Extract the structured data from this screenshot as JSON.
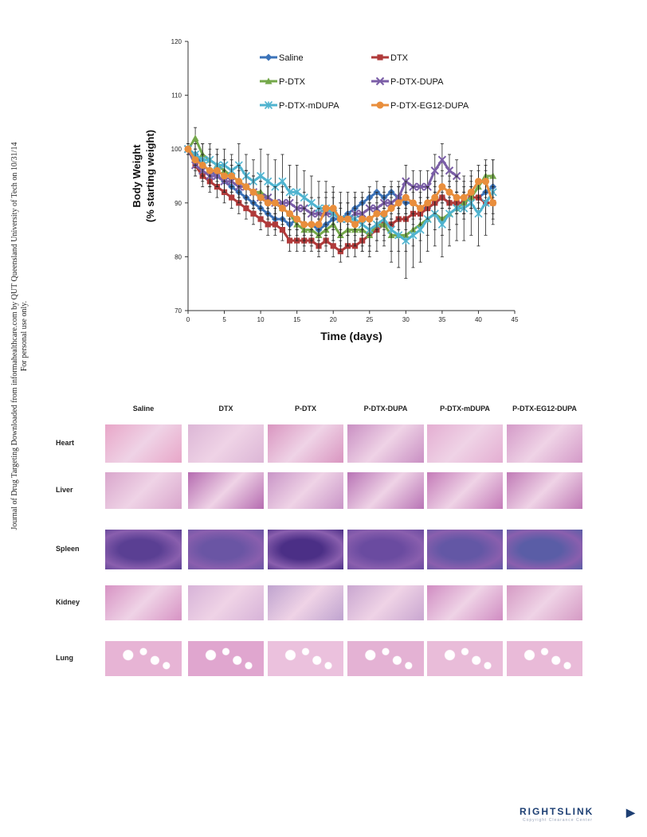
{
  "side_note": {
    "line1": "Journal of Drug Targeting Downloaded from informahealthcare.com by QUT Queensland University of Tech on 10/31/14",
    "line2": "For personal use only."
  },
  "chart_data": {
    "type": "line",
    "title": "",
    "xlabel": "Time (days)",
    "ylabel_line1": "Body Weight",
    "ylabel_line2": "(% starting weight)",
    "xlim": [
      0,
      45
    ],
    "ylim": [
      70,
      120
    ],
    "xticks": [
      0,
      5,
      10,
      15,
      20,
      25,
      30,
      35,
      40,
      45
    ],
    "yticks": [
      70,
      80,
      90,
      100,
      110,
      120
    ],
    "grid": false,
    "legend_position": "top",
    "series": [
      {
        "name": "Saline",
        "color": "#3b73b9",
        "marker": "diamond",
        "x": [
          0,
          1,
          2,
          3,
          4,
          5,
          6,
          7,
          8,
          9,
          10,
          11,
          12,
          13,
          14,
          15,
          16,
          17,
          18,
          19,
          20,
          21,
          22,
          23,
          24,
          25,
          26,
          27,
          28,
          29,
          30,
          31,
          32,
          33,
          34,
          35,
          36,
          37,
          38,
          39,
          40,
          41,
          42
        ],
        "y": [
          100,
          99,
          97,
          96,
          95,
          94,
          93,
          92,
          91,
          90,
          89,
          88,
          87,
          87,
          86,
          87,
          86,
          86,
          85,
          86,
          87,
          87,
          88,
          89,
          90,
          91,
          92,
          91,
          92,
          91,
          90,
          90,
          89,
          89,
          90,
          91,
          90,
          90,
          90,
          91,
          91,
          92,
          93
        ],
        "err": [
          1,
          2,
          2,
          2,
          2,
          2,
          2,
          2,
          2,
          2,
          2,
          2,
          2,
          2,
          2,
          2,
          2,
          2,
          2,
          2,
          2,
          2,
          2,
          2,
          2,
          2,
          2,
          2,
          2,
          2,
          2,
          2,
          2,
          2,
          2,
          2,
          2,
          2,
          2,
          2,
          2,
          2,
          2
        ]
      },
      {
        "name": "DTX",
        "color": "#b03a3a",
        "marker": "square",
        "x": [
          0,
          1,
          2,
          3,
          4,
          5,
          6,
          7,
          8,
          9,
          10,
          11,
          12,
          13,
          14,
          15,
          16,
          17,
          18,
          19,
          20,
          21,
          22,
          23,
          24,
          25,
          26,
          27,
          28,
          29,
          30,
          31,
          32,
          33,
          34,
          35,
          36,
          37,
          38,
          39,
          40,
          41,
          42
        ],
        "y": [
          100,
          97,
          95,
          94,
          93,
          92,
          91,
          90,
          89,
          88,
          87,
          86,
          86,
          85,
          83,
          83,
          83,
          83,
          82,
          83,
          82,
          81,
          82,
          82,
          83,
          84,
          85,
          86,
          86,
          87,
          87,
          88,
          88,
          89,
          90,
          91,
          90,
          90,
          90,
          91,
          91,
          90,
          90
        ],
        "err": [
          1,
          2,
          2,
          2,
          2,
          2,
          2,
          2,
          2,
          2,
          2,
          2,
          2,
          2,
          2,
          2,
          2,
          2,
          2,
          2,
          2,
          2,
          2,
          2,
          2,
          2,
          2,
          2,
          2,
          2,
          2,
          2,
          2,
          2,
          2,
          2,
          2,
          2,
          2,
          2,
          2,
          2,
          2
        ]
      },
      {
        "name": "P-DTX",
        "color": "#74a84a",
        "marker": "triangle",
        "x": [
          0,
          1,
          2,
          3,
          4,
          5,
          6,
          7,
          8,
          9,
          10,
          11,
          12,
          13,
          14,
          15,
          16,
          17,
          18,
          19,
          20,
          21,
          22,
          23,
          24,
          25,
          26,
          27,
          28,
          29,
          30,
          31,
          32,
          33,
          34,
          35,
          36,
          37,
          38,
          39,
          40,
          41,
          42
        ],
        "y": [
          100,
          102,
          99,
          98,
          97,
          96,
          95,
          94,
          93,
          92,
          92,
          91,
          90,
          89,
          88,
          86,
          85,
          85,
          84,
          85,
          86,
          84,
          85,
          85,
          85,
          84,
          86,
          86,
          84,
          84,
          84,
          85,
          86,
          87,
          88,
          87,
          88,
          89,
          90,
          91,
          93,
          95,
          95
        ],
        "err": [
          1,
          2,
          2,
          2,
          2,
          2,
          2,
          3,
          3,
          3,
          3,
          3,
          3,
          3,
          3,
          3,
          3,
          3,
          3,
          3,
          3,
          3,
          3,
          3,
          3,
          3,
          3,
          3,
          3,
          3,
          3,
          3,
          3,
          3,
          3,
          3,
          3,
          3,
          3,
          3,
          3,
          3,
          3
        ]
      },
      {
        "name": "P-DTX-DUPA",
        "color": "#7b5ea7",
        "marker": "x",
        "x": [
          0,
          1,
          2,
          3,
          4,
          5,
          6,
          7,
          8,
          9,
          10,
          11,
          12,
          13,
          14,
          15,
          16,
          17,
          18,
          19,
          20,
          21,
          22,
          23,
          24,
          25,
          26,
          27,
          28,
          29,
          30,
          31,
          32,
          33,
          34,
          35,
          36,
          37
        ],
        "y": [
          100,
          97,
          96,
          95,
          95,
          94,
          94,
          93,
          93,
          92,
          91,
          91,
          90,
          90,
          90,
          89,
          89,
          88,
          88,
          88,
          88,
          87,
          87,
          88,
          88,
          89,
          89,
          90,
          90,
          91,
          94,
          93,
          93,
          93,
          96,
          98,
          96,
          95
        ],
        "err": [
          1,
          2,
          2,
          2,
          2,
          2,
          2,
          3,
          3,
          3,
          3,
          3,
          3,
          3,
          3,
          3,
          3,
          3,
          3,
          3,
          3,
          3,
          3,
          3,
          3,
          3,
          3,
          3,
          3,
          3,
          3,
          3,
          3,
          3,
          3,
          3,
          3,
          3
        ]
      },
      {
        "name": "P-DTX-mDUPA",
        "color": "#4fb3cf",
        "marker": "asterisk",
        "x": [
          0,
          1,
          2,
          3,
          4,
          5,
          6,
          7,
          8,
          9,
          10,
          11,
          12,
          13,
          14,
          15,
          16,
          17,
          18,
          19,
          20,
          21,
          22,
          23,
          24,
          25,
          26,
          27,
          28,
          29,
          30,
          31,
          32,
          33,
          34,
          35,
          36,
          37,
          38,
          39,
          40,
          41,
          42
        ],
        "y": [
          100,
          99,
          98,
          98,
          97,
          97,
          96,
          97,
          95,
          94,
          95,
          94,
          93,
          94,
          92,
          92,
          91,
          90,
          89,
          89,
          88,
          87,
          87,
          87,
          86,
          85,
          86,
          87,
          85,
          84,
          83,
          84,
          85,
          87,
          88,
          86,
          88,
          89,
          89,
          90,
          88,
          90,
          92
        ],
        "err": [
          1,
          2,
          3,
          3,
          3,
          3,
          3,
          4,
          4,
          4,
          5,
          5,
          5,
          5,
          5,
          5,
          5,
          5,
          5,
          5,
          5,
          5,
          5,
          5,
          5,
          5,
          5,
          5,
          6,
          6,
          7,
          6,
          6,
          6,
          6,
          6,
          6,
          6,
          6,
          6,
          6,
          6,
          6
        ]
      },
      {
        "name": "P-DTX-EG12-DUPA",
        "color": "#e98e3c",
        "marker": "circle",
        "x": [
          0,
          1,
          2,
          3,
          4,
          5,
          6,
          7,
          8,
          9,
          10,
          11,
          12,
          13,
          14,
          15,
          16,
          17,
          18,
          19,
          20,
          21,
          22,
          23,
          24,
          25,
          26,
          27,
          28,
          29,
          30,
          31,
          32,
          33,
          34,
          35,
          36,
          37,
          38,
          39,
          40,
          41,
          42
        ],
        "y": [
          100,
          98,
          97,
          96,
          96,
          95,
          95,
          94,
          93,
          92,
          91,
          90,
          90,
          89,
          88,
          87,
          86,
          86,
          86,
          89,
          89,
          87,
          87,
          86,
          87,
          87,
          88,
          88,
          89,
          90,
          91,
          90,
          89,
          90,
          91,
          93,
          92,
          91,
          91,
          92,
          94,
          94,
          90
        ],
        "err": [
          1,
          2,
          2,
          3,
          3,
          3,
          3,
          3,
          3,
          3,
          3,
          3,
          3,
          3,
          3,
          3,
          3,
          3,
          3,
          3,
          3,
          3,
          3,
          3,
          3,
          3,
          3,
          3,
          3,
          3,
          3,
          3,
          3,
          3,
          3,
          3,
          3,
          3,
          3,
          3,
          3,
          3,
          3
        ]
      }
    ]
  },
  "histology": {
    "columns": [
      "Saline",
      "DTX",
      "P-DTX",
      "P-DTX-DUPA",
      "P-DTX-mDUPA",
      "P-DTX-EG12-DUPA"
    ],
    "rows": [
      "Heart",
      "Liver",
      "Spleen",
      "Kidney",
      "Lung"
    ],
    "row_colors": {
      "Heart": [
        "#e8a6c8",
        "#dcb6d6",
        "#d995c0",
        "#c98fc3",
        "#e4aed2",
        "#d49ac8"
      ],
      "Liver": [
        "#d9a6cc",
        "#b56bb0",
        "#c995c7",
        "#b873b5",
        "#c47ab8",
        "#c07ab6"
      ],
      "Spleen": [
        "#5a3f93",
        "#6a55a4",
        "#4b2f86",
        "#6a4ba0",
        "#6357a5",
        "#5a5da6"
      ],
      "Kidney": [
        "#d793c4",
        "#d7b3d8",
        "#bfa3cf",
        "#c9a6d0",
        "#d08cc2",
        "#d59ac4"
      ],
      "Lung": [
        "#e7b4d5",
        "#e0a6cf",
        "#ebc1dd",
        "#e4b2d4",
        "#e9bcd9",
        "#e9bad8"
      ]
    }
  },
  "footer": {
    "rightslink_text": "RIGHTSLINK",
    "rightslink_sub": "Copyright Clearance Center",
    "rightslink_icon": "play-arrow-icon"
  }
}
